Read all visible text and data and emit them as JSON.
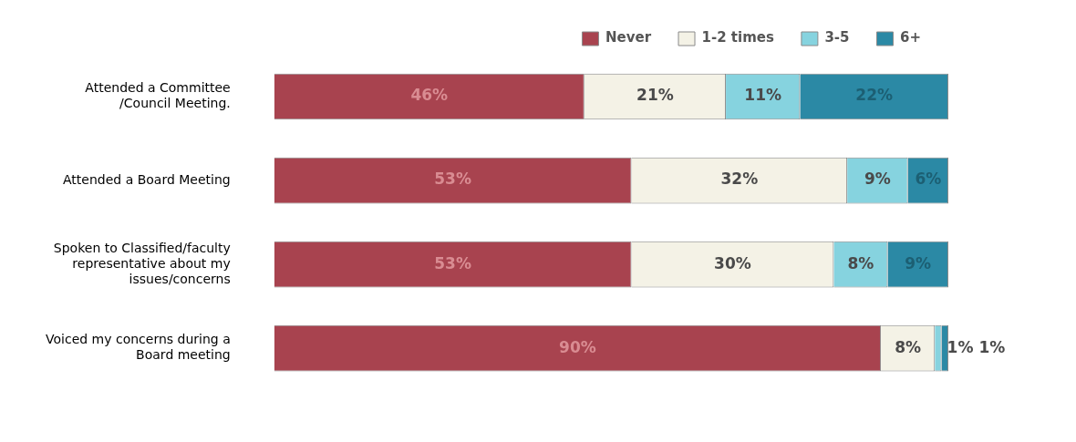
{
  "chart_data": {
    "type": "bar",
    "orientation": "horizontal",
    "stacked": true,
    "categories": [
      "Attended a Committee /Council Meeting.",
      "Attended a Board Meeting",
      "Spoken to Classified/faculty representative about my issues/concerns",
      "Voiced my concerns during a Board meeting"
    ],
    "series": [
      {
        "name": "Never",
        "color": "#a8434f",
        "values": [
          46,
          53,
          53,
          90
        ],
        "value_labels": [
          "46%",
          "53%",
          "53%",
          "90%"
        ]
      },
      {
        "name": "1-2 times",
        "color": "#f4f2e6",
        "values": [
          21,
          32,
          30,
          8
        ],
        "value_labels": [
          "21%",
          "32%",
          "30%",
          "8%"
        ]
      },
      {
        "name": "3-5",
        "color": "#86d3df",
        "values": [
          11,
          9,
          8,
          1
        ],
        "value_labels": [
          "11%",
          "9%",
          "8%",
          "1%"
        ]
      },
      {
        "name": "6+",
        "color": "#2b89a5",
        "values": [
          22,
          6,
          9,
          1
        ],
        "value_labels": [
          "22%",
          "6%",
          "9%",
          "1%"
        ]
      }
    ],
    "tick_labels": "y",
    "legend": "top right"
  }
}
